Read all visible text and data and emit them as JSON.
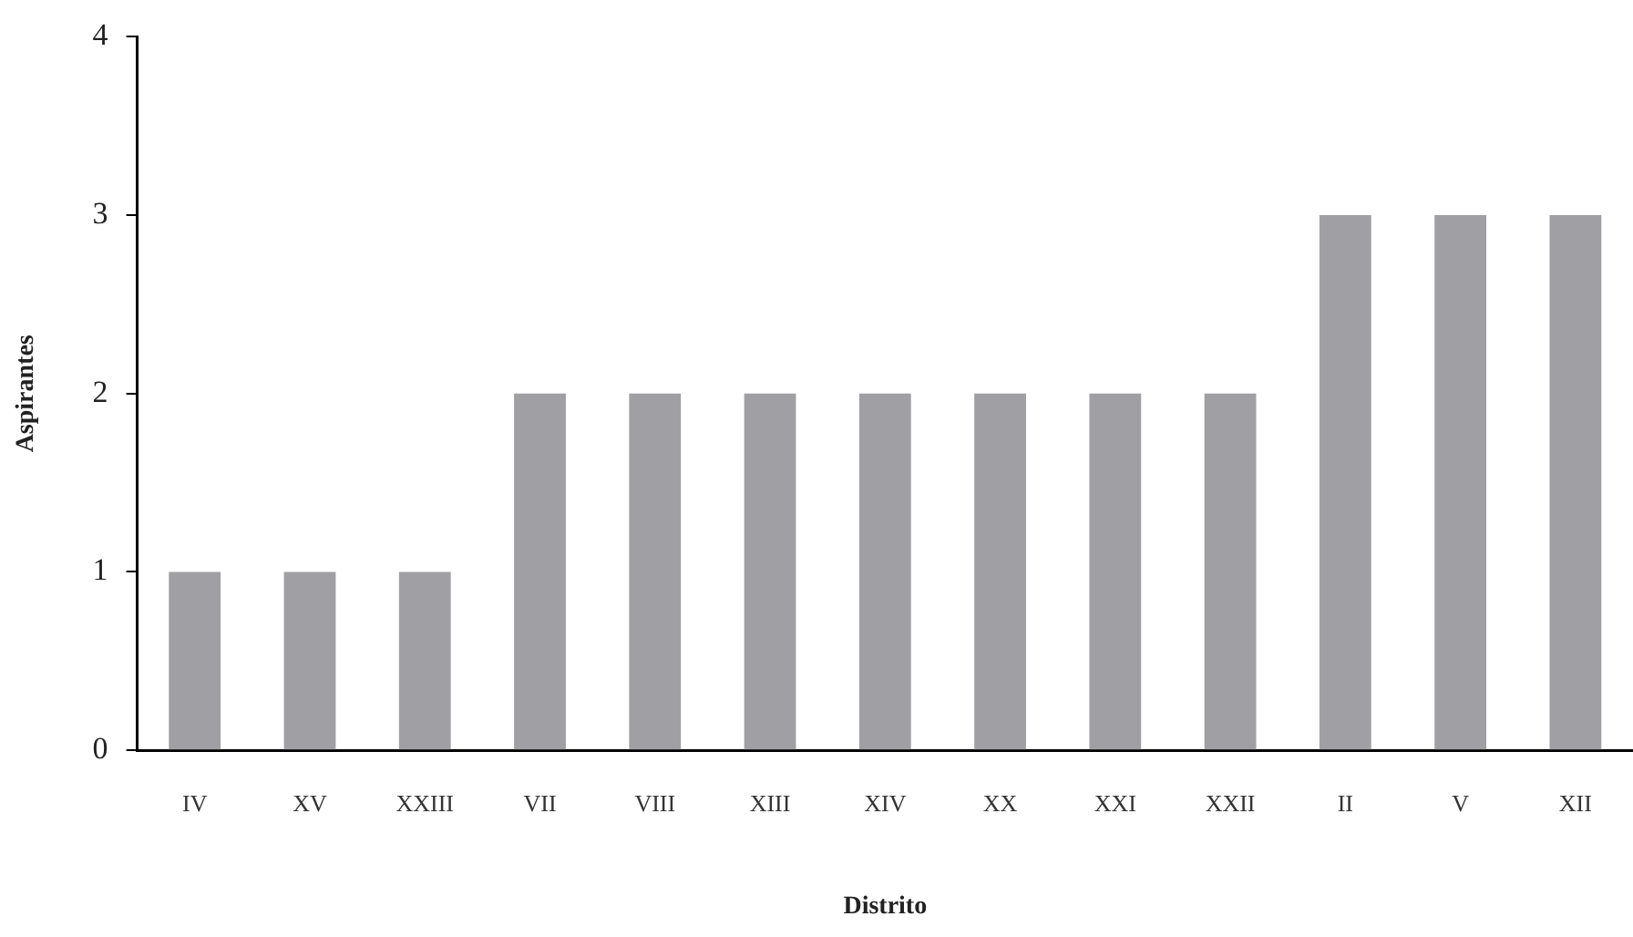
{
  "chart_data": {
    "type": "bar",
    "xlabel": "Distrito",
    "ylabel": "Aspirantes",
    "categories": [
      "IV",
      "XV",
      "XXIII",
      "VII",
      "VIII",
      "XIII",
      "XIV",
      "XX",
      "XXI",
      "XXII",
      "II",
      "V",
      "XII"
    ],
    "values": [
      1,
      1,
      1,
      2,
      2,
      2,
      2,
      2,
      2,
      2,
      3,
      3,
      3
    ],
    "color": "#a0a0a4",
    "ylim": [
      0,
      4
    ],
    "yticks": [
      0,
      1,
      2,
      3,
      4
    ],
    "grid": false,
    "legend": false
  }
}
